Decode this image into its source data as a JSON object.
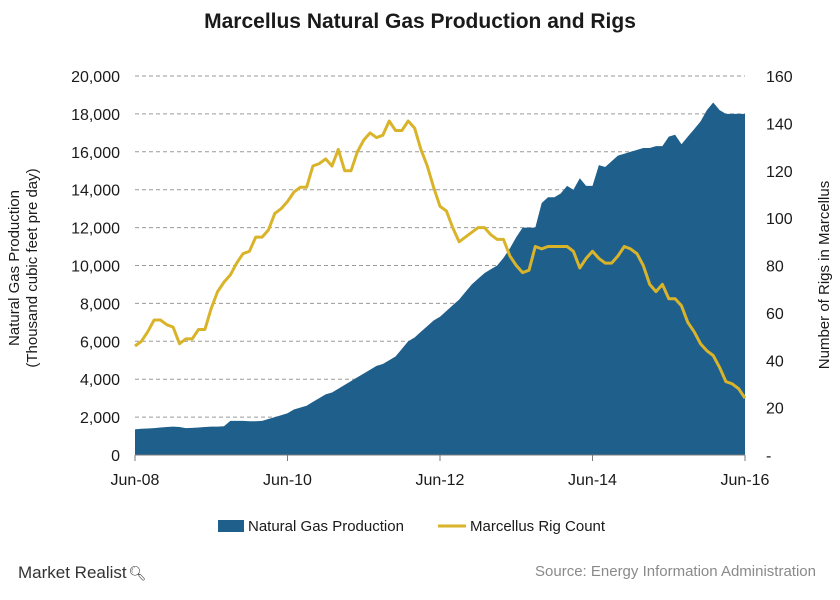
{
  "chart_data": {
    "type": "area",
    "title": "Marcellus Natural Gas Production and Rigs",
    "ylabel_left": [
      "Natural Gas Production",
      "(Thousand cubic feet pre day)"
    ],
    "ylabel_right": "Number of Rigs in Marcellus",
    "ylim_left": [
      0,
      20000
    ],
    "ylim_right": [
      0,
      160
    ],
    "yticks_left": [
      "0",
      "2,000",
      "4,000",
      "6,000",
      "8,000",
      "10,000",
      "12,000",
      "14,000",
      "16,000",
      "18,000",
      "20,000"
    ],
    "yticks_right": [
      "-",
      "20",
      "40",
      "60",
      "80",
      "100",
      "120",
      "140",
      "160"
    ],
    "xticks": [
      "Jun-08",
      "Jun-10",
      "Jun-12",
      "Jun-14",
      "Jun-16"
    ],
    "grid": true,
    "legend_position": "bottom",
    "colors": {
      "production": "#1f5f8c",
      "rigs": "#d9b42a"
    },
    "series": [
      {
        "name": "Natural Gas Production",
        "type": "area",
        "axis": "left",
        "x": [
          "2008-06",
          "2008-07",
          "2008-08",
          "2008-09",
          "2008-10",
          "2008-11",
          "2008-12",
          "2009-01",
          "2009-02",
          "2009-03",
          "2009-04",
          "2009-05",
          "2009-06",
          "2009-07",
          "2009-08",
          "2009-09",
          "2009-10",
          "2009-11",
          "2009-12",
          "2010-01",
          "2010-02",
          "2010-03",
          "2010-04",
          "2010-05",
          "2010-06",
          "2010-07",
          "2010-08",
          "2010-09",
          "2010-10",
          "2010-11",
          "2010-12",
          "2011-01",
          "2011-02",
          "2011-03",
          "2011-04",
          "2011-05",
          "2011-06",
          "2011-07",
          "2011-08",
          "2011-09",
          "2011-10",
          "2011-11",
          "2011-12",
          "2012-01",
          "2012-02",
          "2012-03",
          "2012-04",
          "2012-05",
          "2012-06",
          "2012-07",
          "2012-08",
          "2012-09",
          "2012-10",
          "2012-11",
          "2012-12",
          "2013-01",
          "2013-02",
          "2013-03",
          "2013-04",
          "2013-05",
          "2013-06",
          "2013-07",
          "2013-08",
          "2013-09",
          "2013-10",
          "2013-11",
          "2013-12",
          "2014-01",
          "2014-02",
          "2014-03",
          "2014-04",
          "2014-05",
          "2014-06",
          "2014-07",
          "2014-08",
          "2014-09",
          "2014-10",
          "2014-11",
          "2014-12",
          "2015-01",
          "2015-02",
          "2015-03",
          "2015-04",
          "2015-05",
          "2015-06",
          "2015-07",
          "2015-08",
          "2015-09",
          "2015-10",
          "2015-11",
          "2015-12",
          "2016-01",
          "2016-02",
          "2016-03",
          "2016-04",
          "2016-05",
          "2016-06"
        ],
        "values": [
          1350,
          1380,
          1400,
          1420,
          1450,
          1480,
          1500,
          1480,
          1420,
          1430,
          1450,
          1480,
          1500,
          1500,
          1520,
          1800,
          1800,
          1800,
          1780,
          1780,
          1800,
          1900,
          2000,
          2100,
          2200,
          2400,
          2500,
          2600,
          2800,
          3000,
          3200,
          3300,
          3500,
          3700,
          3900,
          4100,
          4300,
          4500,
          4700,
          4800,
          5000,
          5200,
          5600,
          6000,
          6200,
          6500,
          6800,
          7100,
          7300,
          7600,
          7900,
          8200,
          8600,
          9000,
          9300,
          9600,
          9800,
          10000,
          10400,
          10900,
          11500,
          12000,
          12000,
          12000,
          13300,
          13600,
          13600,
          13800,
          14200,
          14000,
          14600,
          14200,
          14200,
          15300,
          15200,
          15500,
          15800,
          15900,
          16000,
          16100,
          16200,
          16200,
          16300,
          16300,
          16800,
          16900,
          16400,
          16800,
          17200,
          17600,
          18200,
          18600,
          18200,
          18000,
          18000,
          18000,
          18000
        ]
      },
      {
        "name": "Marcellus Rig Count",
        "type": "line",
        "axis": "right",
        "x": [
          "2008-06",
          "2008-07",
          "2008-08",
          "2008-09",
          "2008-10",
          "2008-11",
          "2008-12",
          "2009-01",
          "2009-02",
          "2009-03",
          "2009-04",
          "2009-05",
          "2009-06",
          "2009-07",
          "2009-08",
          "2009-09",
          "2009-10",
          "2009-11",
          "2009-12",
          "2010-01",
          "2010-02",
          "2010-03",
          "2010-04",
          "2010-05",
          "2010-06",
          "2010-07",
          "2010-08",
          "2010-09",
          "2010-10",
          "2010-11",
          "2010-12",
          "2011-01",
          "2011-02",
          "2011-03",
          "2011-04",
          "2011-05",
          "2011-06",
          "2011-07",
          "2011-08",
          "2011-09",
          "2011-10",
          "2011-11",
          "2011-12",
          "2012-01",
          "2012-02",
          "2012-03",
          "2012-04",
          "2012-05",
          "2012-06",
          "2012-07",
          "2012-08",
          "2012-09",
          "2012-10",
          "2012-11",
          "2012-12",
          "2013-01",
          "2013-02",
          "2013-03",
          "2013-04",
          "2013-05",
          "2013-06",
          "2013-07",
          "2013-08",
          "2013-09",
          "2013-10",
          "2013-11",
          "2013-12",
          "2014-01",
          "2014-02",
          "2014-03",
          "2014-04",
          "2014-05",
          "2014-06",
          "2014-07",
          "2014-08",
          "2014-09",
          "2014-10",
          "2014-11",
          "2014-12",
          "2015-01",
          "2015-02",
          "2015-03",
          "2015-04",
          "2015-05",
          "2015-06",
          "2015-07",
          "2015-08",
          "2015-09",
          "2015-10",
          "2015-11",
          "2015-12",
          "2016-01",
          "2016-02",
          "2016-03",
          "2016-04",
          "2016-05",
          "2016-06"
        ],
        "values": [
          46,
          48,
          52,
          57,
          57,
          55,
          54,
          47,
          49,
          49,
          53,
          53,
          62,
          69,
          73,
          76,
          81,
          85,
          86,
          92,
          92,
          95,
          102,
          104,
          107,
          111,
          113,
          113,
          122,
          123,
          125,
          122,
          129,
          120,
          120,
          128,
          133,
          136,
          134,
          135,
          141,
          137,
          137,
          141,
          138,
          129,
          122,
          113,
          105,
          103,
          96,
          90,
          92,
          94,
          96,
          96,
          93,
          91,
          91,
          84,
          80,
          77,
          78,
          88,
          87,
          88,
          88,
          88,
          88,
          86,
          79,
          83,
          86,
          83,
          81,
          81,
          84,
          88,
          87,
          85,
          80,
          72,
          69,
          72,
          66,
          66,
          63,
          56,
          52,
          47,
          44,
          42,
          37,
          31,
          30,
          28,
          24
        ]
      }
    ]
  },
  "legend": {
    "production_label": "Natural Gas Production",
    "rigs_label": "Marcellus Rig Count"
  },
  "footer": {
    "brand": "Market Realist",
    "source": "Source:  Energy Information  Administration"
  }
}
